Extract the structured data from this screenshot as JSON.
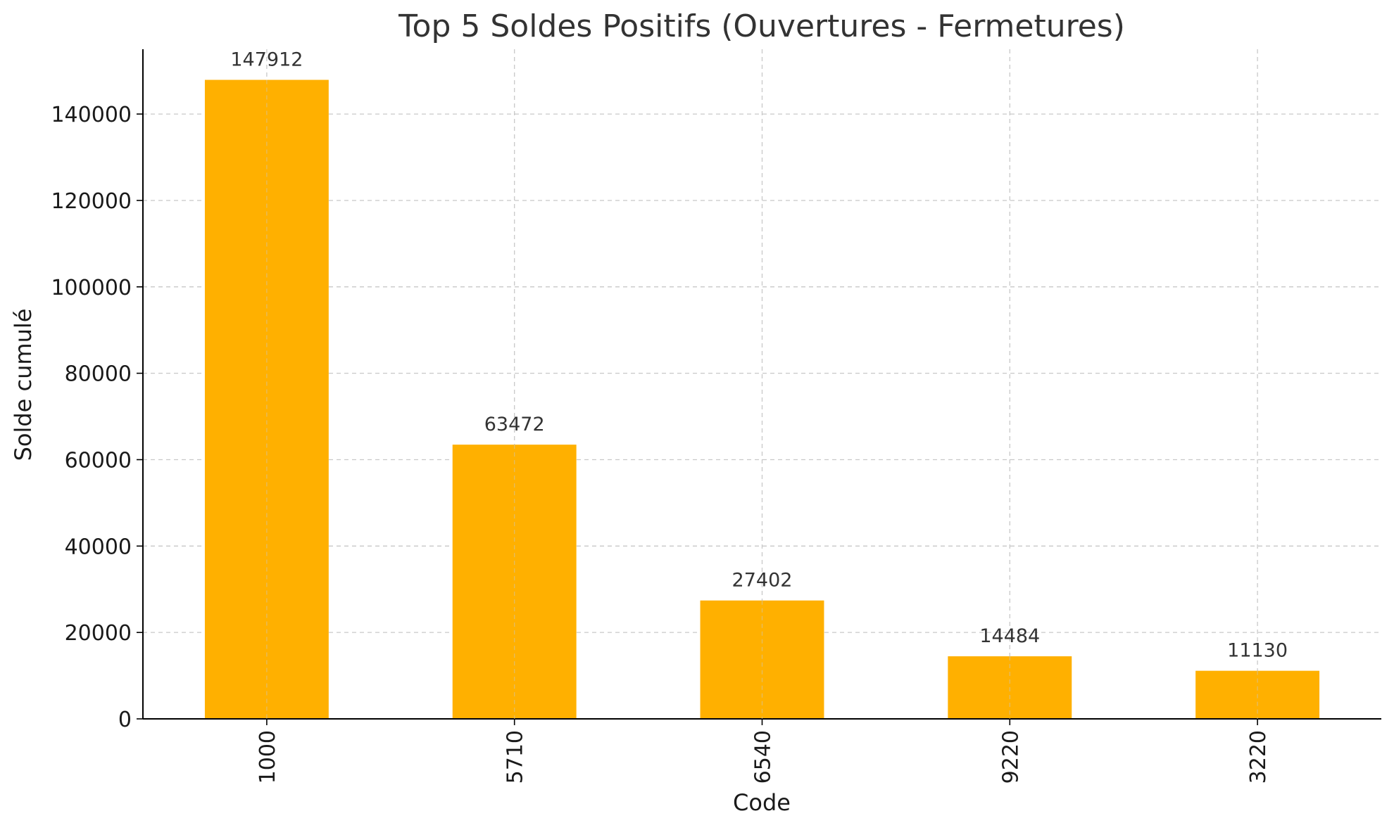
{
  "chart_data": {
    "type": "bar",
    "title": "Top 5 Soldes Positifs (Ouvertures - Fermetures)",
    "xlabel": "Code",
    "ylabel": "Solde cumulé",
    "categories": [
      "1000",
      "5710",
      "6540",
      "9220",
      "3220"
    ],
    "values": [
      147912,
      63472,
      27402,
      14484,
      11130
    ],
    "data_labels": [
      "147912",
      "63472",
      "27402",
      "14484",
      "11130"
    ],
    "yticks": [
      0,
      20000,
      40000,
      60000,
      80000,
      100000,
      120000,
      140000
    ],
    "ytick_labels": [
      "0",
      "20000",
      "40000",
      "60000",
      "80000",
      "100000",
      "120000",
      "140000"
    ],
    "ylim": [
      0,
      155000
    ],
    "grid": true,
    "bar_color": "#FFB000",
    "x_tick_rotation": "vertical"
  }
}
